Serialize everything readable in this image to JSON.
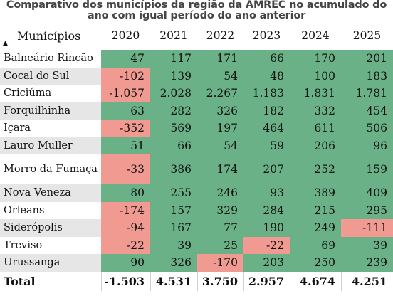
{
  "title": {
    "line1": "Comparativo dos municípios da região da AMREC no acumulado do",
    "line2": "ano com igual período do ano anterior"
  },
  "header": {
    "municipio_label": "Municípios",
    "sort_icon": "sort-ascending-icon",
    "years": [
      "2020",
      "2021",
      "2022",
      "2023",
      "2024",
      "2025"
    ]
  },
  "colors": {
    "positive": "#6ab187",
    "negative": "#f09a92",
    "alt_row": "#e6e6e6"
  },
  "rows": [
    {
      "name": "Balneário Rincão",
      "values": [
        "47",
        "117",
        "171",
        "66",
        "170",
        "201"
      ]
    },
    {
      "name": "Cocal do Sul",
      "values": [
        "-102",
        "139",
        "54",
        "48",
        "100",
        "183"
      ]
    },
    {
      "name": "Criciúma",
      "values": [
        "-1.057",
        "2.028",
        "2.267",
        "1.183",
        "1.831",
        "1.781"
      ]
    },
    {
      "name": "Forquilhinha",
      "values": [
        "63",
        "282",
        "326",
        "182",
        "332",
        "454"
      ]
    },
    {
      "name": "Içara",
      "values": [
        "-352",
        "569",
        "197",
        "464",
        "611",
        "506"
      ]
    },
    {
      "name": "Lauro Muller",
      "values": [
        "51",
        "66",
        "54",
        "59",
        "206",
        "96"
      ]
    },
    {
      "name": "Morro da Fumaça",
      "values": [
        "-33",
        "386",
        "174",
        "207",
        "252",
        "159"
      ]
    },
    {
      "name": "Nova Veneza",
      "values": [
        "80",
        "255",
        "246",
        "93",
        "389",
        "409"
      ]
    },
    {
      "name": "Orleans",
      "values": [
        "-174",
        "157",
        "329",
        "284",
        "215",
        "295"
      ]
    },
    {
      "name": "Siderópolis",
      "values": [
        "-94",
        "167",
        "77",
        "190",
        "249",
        "-111"
      ]
    },
    {
      "name": "Treviso",
      "values": [
        "-22",
        "39",
        "25",
        "-22",
        "69",
        "39"
      ]
    },
    {
      "name": "Urussanga",
      "values": [
        "90",
        "326",
        "-170",
        "203",
        "250",
        "239"
      ]
    }
  ],
  "total": {
    "label": "Total",
    "values": [
      "-1.503",
      "4.531",
      "3.750",
      "2.957",
      "4.674",
      "4.251"
    ]
  }
}
